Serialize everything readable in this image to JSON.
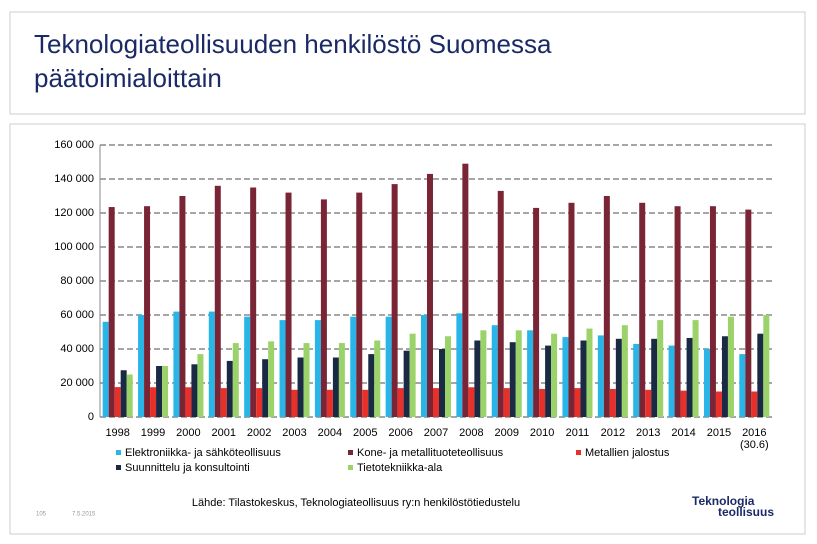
{
  "slide": {
    "footer_page": "105",
    "footer_date": "7.5.2015",
    "logo": [
      "Teknologia",
      "teollisuus"
    ]
  },
  "chart_data": {
    "type": "bar",
    "title": [
      "Teknologiateollisuuden henkilöstö Suomessa",
      "päätoimialoittain"
    ],
    "categories": [
      "1998",
      "1999",
      "2000",
      "2001",
      "2002",
      "2003",
      "2004",
      "2005",
      "2006",
      "2007",
      "2008",
      "2009",
      "2010",
      "2011",
      "2012",
      "2013",
      "2014",
      "2015",
      "2016"
    ],
    "annotations": [
      {
        "text": "(30.6)",
        "category": 18
      }
    ],
    "series": [
      {
        "name": "Elektroniikka- ja sähköteollisuus",
        "color": "#29b5e8",
        "values": [
          56000,
          60000,
          62000,
          62000,
          59000,
          57000,
          57000,
          59000,
          59000,
          60000,
          61000,
          54000,
          51000,
          47000,
          48000,
          43000,
          42000,
          40000,
          37000
        ]
      },
      {
        "name": "Kone- ja metallituoteteollisuus",
        "color": "#7a2535",
        "values": [
          123500,
          124000,
          130000,
          136000,
          135000,
          132000,
          128000,
          132000,
          137000,
          143000,
          149000,
          133000,
          123000,
          126000,
          130000,
          126000,
          124000,
          124000,
          122000
        ]
      },
      {
        "name": "Metallien jalostus",
        "color": "#e8302a",
        "values": [
          17600,
          17500,
          17500,
          17000,
          17000,
          16000,
          16000,
          16000,
          17000,
          17000,
          17500,
          17000,
          16500,
          17000,
          16500,
          16000,
          15500,
          15000,
          15000
        ]
      },
      {
        "name": "Suunnittelu ja konsultointi",
        "color": "#1a2a44",
        "values": [
          27500,
          30000,
          31000,
          33000,
          34000,
          35000,
          35000,
          37000,
          39000,
          40000,
          45000,
          44000,
          42000,
          45000,
          46000,
          46000,
          46500,
          47500,
          49000
        ]
      },
      {
        "name": "Tietotekniikka-ala",
        "color": "#9bd36a",
        "values": [
          25000,
          30000,
          37000,
          43500,
          44500,
          43500,
          43500,
          45000,
          49000,
          47500,
          51000,
          51000,
          49000,
          52000,
          54000,
          57000,
          57000,
          59000,
          60000
        ]
      }
    ],
    "ylim": [
      0,
      160000
    ],
    "yticks": [
      0,
      {
        "value": 20000,
        "label": "20 000"
      },
      {
        "value": 40000,
        "label": "40 000"
      },
      {
        "value": 60000,
        "label": "60 000"
      },
      {
        "value": 80000,
        "label": "80 000"
      },
      {
        "value": 100000,
        "label": "100 000"
      },
      {
        "value": 120000,
        "label": "120 000"
      },
      {
        "value": 140000,
        "label": "140 000"
      },
      {
        "value": 160000,
        "label": "160 000"
      }
    ],
    "grid": true,
    "source": "Lähde: Tilastokeskus, Teknologiateollisuus ry:n henkilöstötiedustelu"
  }
}
